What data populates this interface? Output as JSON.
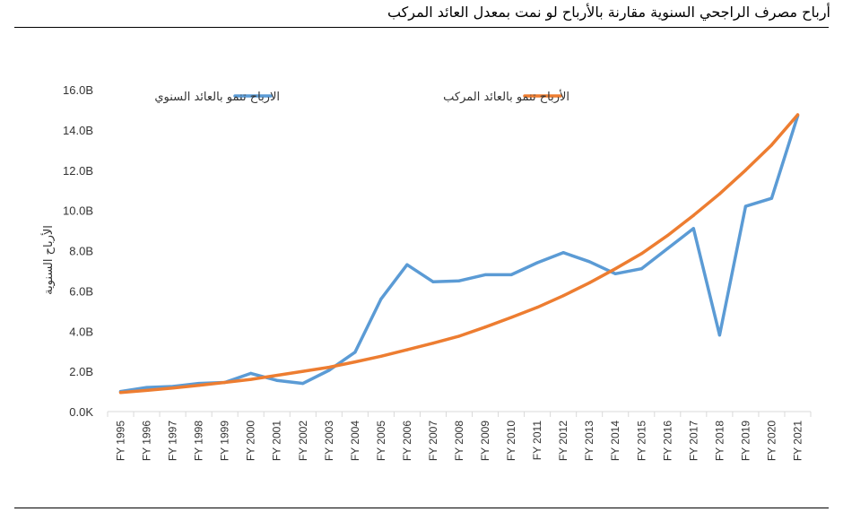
{
  "title": "أرباح مصرف الراجحي السنوية مقارنة بالأرباح لو نمت بمعدل العائد المركب",
  "chart_data": {
    "type": "line",
    "title": "أرباح مصرف الراجحي السنوية مقارنة بالأرباح لو نمت بمعدل العائد المركب",
    "xlabel": "",
    "ylabel": "الأرباح السنوية",
    "ylim": [
      0,
      16
    ],
    "y_ticks": [
      "0.0K",
      "2.0B",
      "4.0B",
      "6.0B",
      "8.0B",
      "10.0B",
      "12.0B",
      "14.0B",
      "16.0B"
    ],
    "categories": [
      "FY 1995",
      "FY 1996",
      "FY 1997",
      "FY 1998",
      "FY 1999",
      "FY 2000",
      "FY 2001",
      "FY 2002",
      "FY 2003",
      "FY 2004",
      "FY 2005",
      "FY 2006",
      "FY 2007",
      "FY 2008",
      "FY 2009",
      "FY 2010",
      "FY 2011",
      "FY 2012",
      "FY 2013",
      "FY 2014",
      "FY 2015",
      "FY 2016",
      "FY 2017",
      "FY 2018",
      "FY 2019",
      "FY 2020",
      "FY 2021"
    ],
    "series": [
      {
        "name": "الارباح تنمو بالعائد السنوي",
        "color": "#5b9bd5",
        "values": [
          1.0,
          1.2,
          1.25,
          1.4,
          1.45,
          1.9,
          1.55,
          1.4,
          2.05,
          2.95,
          5.6,
          7.3,
          6.45,
          6.5,
          6.8,
          6.8,
          7.4,
          7.9,
          7.45,
          6.85,
          7.1,
          8.1,
          9.1,
          3.8,
          10.2,
          10.6,
          14.7
        ]
      },
      {
        "name": "الأرباح تنمو بالعائد المركب",
        "color": "#ed7d31",
        "values": [
          0.95,
          1.05,
          1.17,
          1.3,
          1.45,
          1.6,
          1.8,
          2.0,
          2.2,
          2.47,
          2.75,
          3.07,
          3.4,
          3.75,
          4.2,
          4.68,
          5.18,
          5.76,
          6.4,
          7.1,
          7.85,
          8.75,
          9.75,
          10.82,
          12.0,
          13.25,
          14.75
        ]
      }
    ]
  }
}
